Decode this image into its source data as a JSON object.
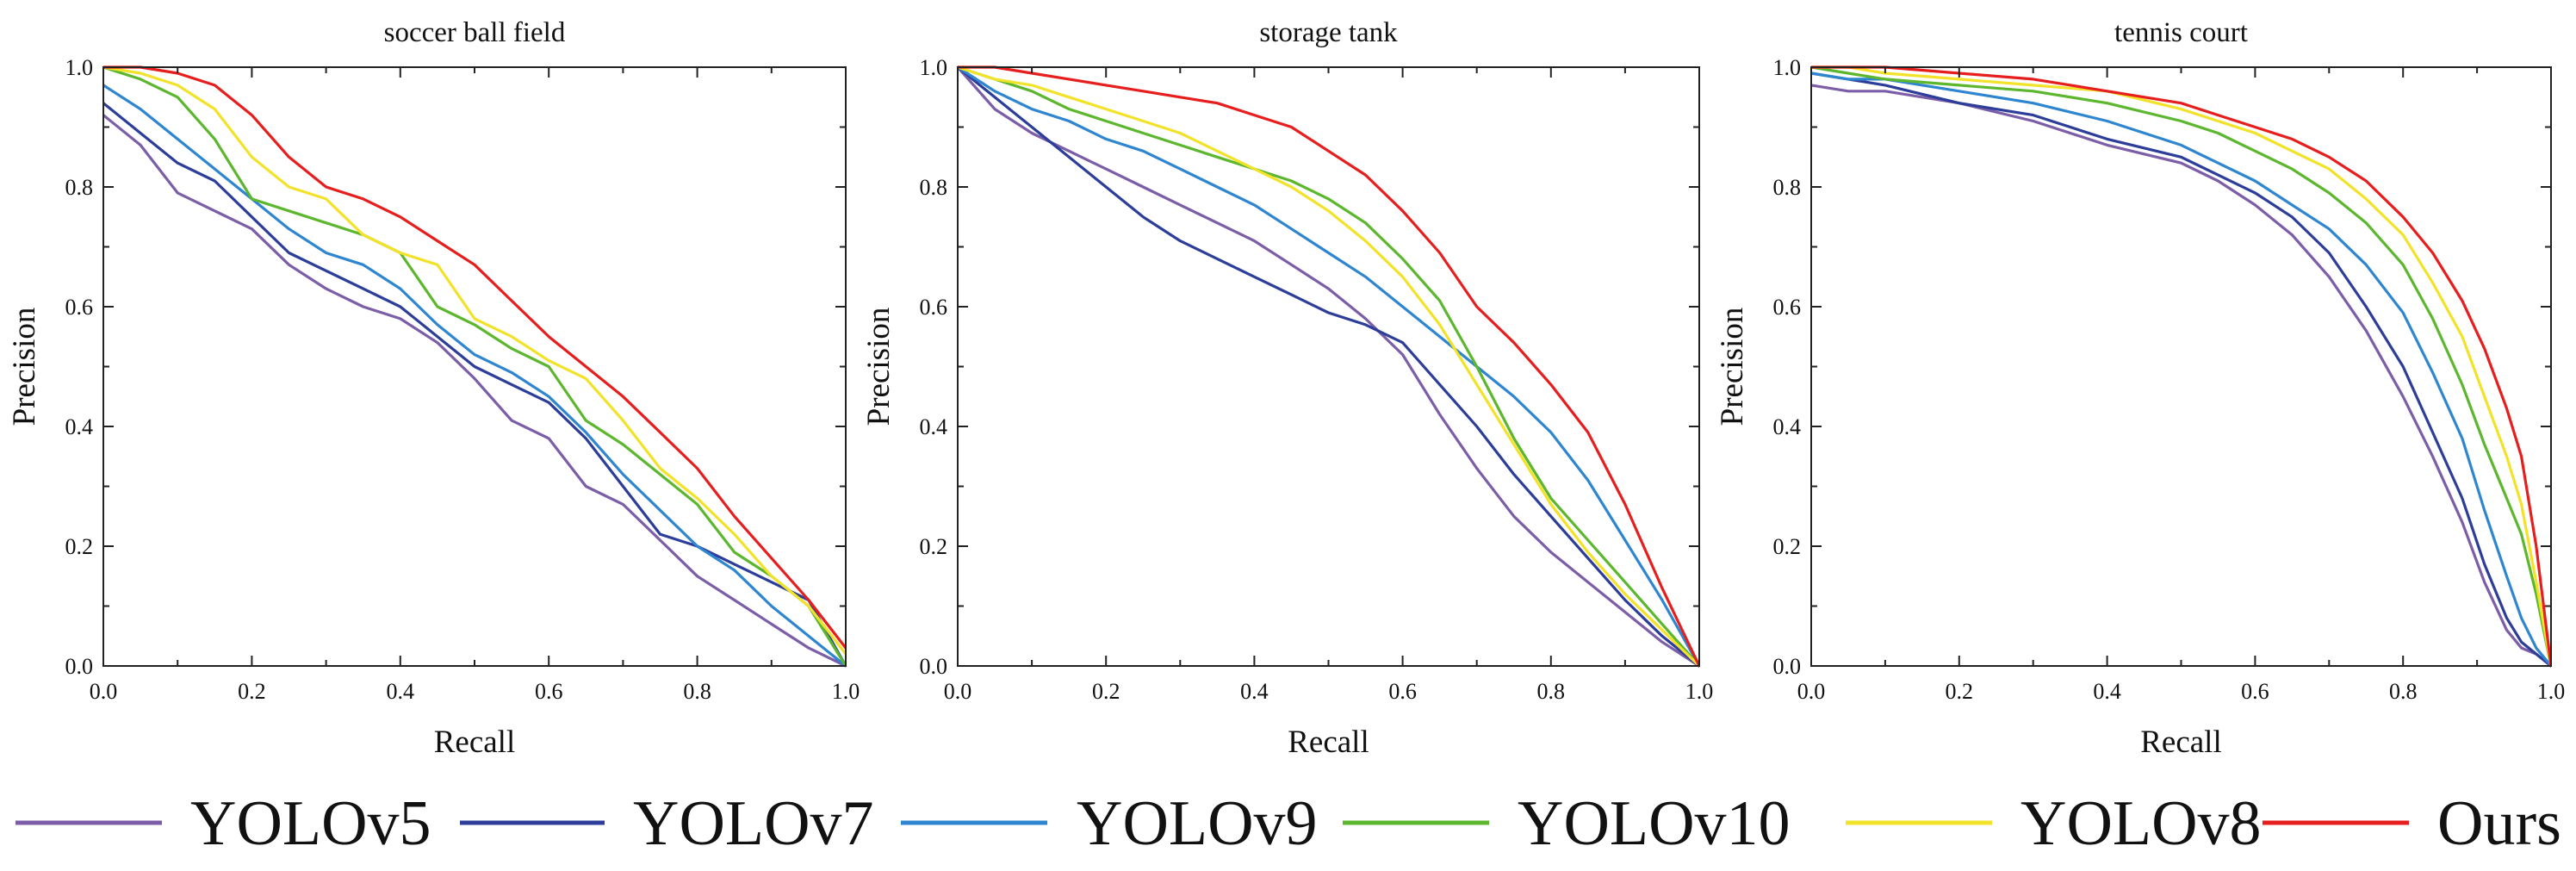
{
  "chart_data": [
    {
      "type": "line",
      "title": "soccer ball field",
      "xlabel": "Recall",
      "ylabel": "Precision",
      "xlim": [
        0,
        1
      ],
      "ylim": [
        0,
        1
      ],
      "grid": false,
      "xticks": [
        "0.0",
        "0.2",
        "0.4",
        "0.6",
        "0.8",
        "1.0"
      ],
      "yticks": [
        "0.0",
        "0.2",
        "0.4",
        "0.6",
        "0.8",
        "1.0"
      ],
      "series": [
        {
          "name": "YOLOv5",
          "x": [
            0,
            0.05,
            0.1,
            0.15,
            0.2,
            0.25,
            0.3,
            0.35,
            0.4,
            0.45,
            0.5,
            0.55,
            0.6,
            0.65,
            0.7,
            0.75,
            0.8,
            0.85,
            0.9,
            0.95,
            1.0
          ],
          "y": [
            0.92,
            0.87,
            0.79,
            0.76,
            0.73,
            0.67,
            0.63,
            0.6,
            0.58,
            0.54,
            0.48,
            0.41,
            0.38,
            0.3,
            0.27,
            0.21,
            0.15,
            0.11,
            0.07,
            0.03,
            0.0
          ]
        },
        {
          "name": "YOLOv7",
          "x": [
            0,
            0.05,
            0.1,
            0.15,
            0.2,
            0.25,
            0.3,
            0.35,
            0.4,
            0.45,
            0.5,
            0.55,
            0.6,
            0.65,
            0.7,
            0.75,
            0.8,
            0.85,
            0.9,
            0.95,
            1.0
          ],
          "y": [
            0.94,
            0.89,
            0.84,
            0.81,
            0.75,
            0.69,
            0.66,
            0.63,
            0.6,
            0.55,
            0.5,
            0.47,
            0.44,
            0.38,
            0.3,
            0.22,
            0.2,
            0.17,
            0.14,
            0.11,
            0.0
          ]
        },
        {
          "name": "YOLOv9",
          "x": [
            0,
            0.05,
            0.1,
            0.15,
            0.2,
            0.25,
            0.3,
            0.35,
            0.4,
            0.45,
            0.5,
            0.55,
            0.6,
            0.65,
            0.7,
            0.75,
            0.8,
            0.85,
            0.9,
            0.95,
            1.0
          ],
          "y": [
            0.97,
            0.93,
            0.88,
            0.83,
            0.78,
            0.73,
            0.69,
            0.67,
            0.63,
            0.57,
            0.52,
            0.49,
            0.45,
            0.39,
            0.32,
            0.26,
            0.2,
            0.16,
            0.1,
            0.05,
            0.0
          ]
        },
        {
          "name": "YOLOv10",
          "x": [
            0,
            0.05,
            0.1,
            0.15,
            0.2,
            0.25,
            0.3,
            0.35,
            0.4,
            0.45,
            0.5,
            0.55,
            0.6,
            0.65,
            0.7,
            0.75,
            0.8,
            0.85,
            0.9,
            0.95,
            1.0
          ],
          "y": [
            1.0,
            0.98,
            0.95,
            0.88,
            0.78,
            0.76,
            0.74,
            0.72,
            0.69,
            0.6,
            0.57,
            0.53,
            0.5,
            0.41,
            0.37,
            0.32,
            0.27,
            0.19,
            0.15,
            0.1,
            0.0
          ]
        },
        {
          "name": "YOLOv8",
          "x": [
            0,
            0.05,
            0.1,
            0.15,
            0.2,
            0.25,
            0.3,
            0.35,
            0.4,
            0.45,
            0.5,
            0.55,
            0.6,
            0.65,
            0.7,
            0.75,
            0.8,
            0.85,
            0.9,
            0.95,
            1.0
          ],
          "y": [
            1.0,
            0.99,
            0.97,
            0.93,
            0.85,
            0.8,
            0.78,
            0.72,
            0.69,
            0.67,
            0.58,
            0.55,
            0.51,
            0.48,
            0.41,
            0.33,
            0.28,
            0.22,
            0.15,
            0.1,
            0.02
          ]
        },
        {
          "name": "Ours",
          "x": [
            0,
            0.05,
            0.1,
            0.15,
            0.2,
            0.25,
            0.3,
            0.35,
            0.4,
            0.45,
            0.5,
            0.55,
            0.6,
            0.65,
            0.7,
            0.75,
            0.8,
            0.85,
            0.9,
            0.95,
            1.0
          ],
          "y": [
            1.0,
            1.0,
            0.99,
            0.97,
            0.92,
            0.85,
            0.8,
            0.78,
            0.75,
            0.71,
            0.67,
            0.61,
            0.55,
            0.5,
            0.45,
            0.39,
            0.33,
            0.25,
            0.18,
            0.11,
            0.03
          ]
        }
      ]
    },
    {
      "type": "line",
      "title": "storage tank",
      "xlabel": "Recall",
      "ylabel": "Precision",
      "xlim": [
        0,
        1
      ],
      "ylim": [
        0,
        1
      ],
      "grid": false,
      "xticks": [
        "0.0",
        "0.2",
        "0.4",
        "0.6",
        "0.8",
        "1.0"
      ],
      "yticks": [
        "0.0",
        "0.2",
        "0.4",
        "0.6",
        "0.8",
        "1.0"
      ],
      "series": [
        {
          "name": "YOLOv5",
          "x": [
            0,
            0.05,
            0.1,
            0.15,
            0.2,
            0.25,
            0.3,
            0.35,
            0.4,
            0.45,
            0.5,
            0.55,
            0.6,
            0.65,
            0.7,
            0.75,
            0.8,
            0.85,
            0.9,
            0.95,
            1.0
          ],
          "y": [
            1.0,
            0.93,
            0.89,
            0.86,
            0.83,
            0.8,
            0.77,
            0.74,
            0.71,
            0.67,
            0.63,
            0.58,
            0.52,
            0.42,
            0.33,
            0.25,
            0.19,
            0.14,
            0.09,
            0.04,
            0.0
          ]
        },
        {
          "name": "YOLOv7",
          "x": [
            0,
            0.05,
            0.1,
            0.15,
            0.2,
            0.25,
            0.3,
            0.35,
            0.4,
            0.45,
            0.5,
            0.55,
            0.6,
            0.65,
            0.7,
            0.75,
            0.8,
            0.85,
            0.9,
            0.95,
            1.0
          ],
          "y": [
            1.0,
            0.95,
            0.9,
            0.85,
            0.8,
            0.75,
            0.71,
            0.68,
            0.65,
            0.62,
            0.59,
            0.57,
            0.54,
            0.47,
            0.4,
            0.32,
            0.25,
            0.18,
            0.11,
            0.05,
            0.0
          ]
        },
        {
          "name": "YOLOv9",
          "x": [
            0,
            0.05,
            0.1,
            0.15,
            0.2,
            0.25,
            0.3,
            0.35,
            0.4,
            0.45,
            0.5,
            0.55,
            0.6,
            0.65,
            0.7,
            0.75,
            0.8,
            0.85,
            0.9,
            0.95,
            1.0
          ],
          "y": [
            1.0,
            0.96,
            0.93,
            0.91,
            0.88,
            0.86,
            0.83,
            0.8,
            0.77,
            0.73,
            0.69,
            0.65,
            0.6,
            0.55,
            0.5,
            0.45,
            0.39,
            0.31,
            0.21,
            0.11,
            0.0
          ]
        },
        {
          "name": "YOLOv10",
          "x": [
            0,
            0.05,
            0.1,
            0.15,
            0.2,
            0.25,
            0.3,
            0.35,
            0.4,
            0.45,
            0.5,
            0.55,
            0.6,
            0.65,
            0.7,
            0.75,
            0.8,
            0.85,
            0.9,
            0.95,
            1.0
          ],
          "y": [
            1.0,
            0.98,
            0.96,
            0.93,
            0.91,
            0.89,
            0.87,
            0.85,
            0.83,
            0.81,
            0.78,
            0.74,
            0.68,
            0.61,
            0.5,
            0.38,
            0.28,
            0.21,
            0.14,
            0.07,
            0.0
          ]
        },
        {
          "name": "YOLOv8",
          "x": [
            0,
            0.05,
            0.1,
            0.15,
            0.2,
            0.25,
            0.3,
            0.35,
            0.4,
            0.45,
            0.5,
            0.55,
            0.6,
            0.65,
            0.7,
            0.75,
            0.8,
            0.85,
            0.9,
            0.95,
            1.0
          ],
          "y": [
            1.0,
            0.98,
            0.97,
            0.95,
            0.93,
            0.91,
            0.89,
            0.86,
            0.83,
            0.8,
            0.76,
            0.71,
            0.65,
            0.57,
            0.47,
            0.37,
            0.27,
            0.19,
            0.12,
            0.06,
            0.0
          ]
        },
        {
          "name": "Ours",
          "x": [
            0,
            0.05,
            0.1,
            0.15,
            0.2,
            0.25,
            0.3,
            0.35,
            0.4,
            0.45,
            0.5,
            0.55,
            0.6,
            0.65,
            0.7,
            0.75,
            0.8,
            0.85,
            0.9,
            0.95,
            1.0
          ],
          "y": [
            1.0,
            1.0,
            0.99,
            0.98,
            0.97,
            0.96,
            0.95,
            0.94,
            0.92,
            0.9,
            0.86,
            0.82,
            0.76,
            0.69,
            0.6,
            0.54,
            0.47,
            0.39,
            0.27,
            0.13,
            0.0
          ]
        }
      ]
    },
    {
      "type": "line",
      "title": "tennis court",
      "xlabel": "Recall",
      "ylabel": "Precision",
      "xlim": [
        0,
        1
      ],
      "ylim": [
        0,
        1
      ],
      "grid": false,
      "xticks": [
        "0.0",
        "0.2",
        "0.4",
        "0.6",
        "0.8",
        "1.0"
      ],
      "yticks": [
        "0.0",
        "0.2",
        "0.4",
        "0.6",
        "0.8",
        "1.0"
      ],
      "series": [
        {
          "name": "YOLOv5",
          "x": [
            0,
            0.05,
            0.1,
            0.2,
            0.3,
            0.4,
            0.5,
            0.55,
            0.6,
            0.65,
            0.7,
            0.75,
            0.8,
            0.84,
            0.88,
            0.91,
            0.94,
            0.96,
            0.98,
            1.0
          ],
          "y": [
            0.97,
            0.96,
            0.96,
            0.94,
            0.91,
            0.87,
            0.84,
            0.81,
            0.77,
            0.72,
            0.65,
            0.56,
            0.45,
            0.35,
            0.24,
            0.14,
            0.06,
            0.03,
            0.02,
            0.0
          ]
        },
        {
          "name": "YOLOv7",
          "x": [
            0,
            0.05,
            0.1,
            0.2,
            0.3,
            0.4,
            0.5,
            0.55,
            0.6,
            0.65,
            0.7,
            0.75,
            0.8,
            0.84,
            0.88,
            0.91,
            0.94,
            0.96,
            0.98,
            1.0
          ],
          "y": [
            0.99,
            0.98,
            0.97,
            0.94,
            0.92,
            0.88,
            0.85,
            0.82,
            0.79,
            0.75,
            0.69,
            0.6,
            0.5,
            0.39,
            0.28,
            0.17,
            0.08,
            0.04,
            0.02,
            0.0
          ]
        },
        {
          "name": "YOLOv9",
          "x": [
            0,
            0.05,
            0.1,
            0.2,
            0.3,
            0.4,
            0.5,
            0.55,
            0.6,
            0.65,
            0.7,
            0.75,
            0.8,
            0.84,
            0.88,
            0.91,
            0.94,
            0.96,
            0.98,
            1.0
          ],
          "y": [
            0.99,
            0.98,
            0.98,
            0.96,
            0.94,
            0.91,
            0.87,
            0.84,
            0.81,
            0.77,
            0.73,
            0.67,
            0.59,
            0.49,
            0.38,
            0.26,
            0.15,
            0.08,
            0.03,
            0.0
          ]
        },
        {
          "name": "YOLOv10",
          "x": [
            0,
            0.05,
            0.1,
            0.2,
            0.3,
            0.4,
            0.5,
            0.55,
            0.6,
            0.65,
            0.7,
            0.75,
            0.8,
            0.84,
            0.88,
            0.91,
            0.94,
            0.96,
            0.98,
            1.0
          ],
          "y": [
            1.0,
            0.99,
            0.98,
            0.97,
            0.96,
            0.94,
            0.91,
            0.89,
            0.86,
            0.83,
            0.79,
            0.74,
            0.67,
            0.58,
            0.47,
            0.37,
            0.28,
            0.22,
            0.12,
            0.0
          ]
        },
        {
          "name": "YOLOv8",
          "x": [
            0,
            0.05,
            0.1,
            0.2,
            0.3,
            0.4,
            0.5,
            0.55,
            0.6,
            0.65,
            0.7,
            0.75,
            0.8,
            0.84,
            0.88,
            0.91,
            0.94,
            0.96,
            0.98,
            1.0
          ],
          "y": [
            1.0,
            1.0,
            0.99,
            0.98,
            0.97,
            0.96,
            0.93,
            0.91,
            0.89,
            0.86,
            0.83,
            0.78,
            0.72,
            0.64,
            0.55,
            0.45,
            0.35,
            0.27,
            0.14,
            0.0
          ]
        },
        {
          "name": "Ours",
          "x": [
            0,
            0.05,
            0.1,
            0.2,
            0.3,
            0.4,
            0.5,
            0.55,
            0.6,
            0.65,
            0.7,
            0.75,
            0.8,
            0.84,
            0.88,
            0.91,
            0.94,
            0.96,
            0.98,
            1.0
          ],
          "y": [
            1.0,
            1.0,
            1.0,
            0.99,
            0.98,
            0.96,
            0.94,
            0.92,
            0.9,
            0.88,
            0.85,
            0.81,
            0.75,
            0.69,
            0.61,
            0.53,
            0.43,
            0.35,
            0.2,
            0.0
          ]
        }
      ]
    }
  ],
  "legend": {
    "position": "bottom",
    "items": [
      {
        "name": "YOLOv5",
        "color": "#7b5ea7"
      },
      {
        "name": "YOLOv7",
        "color": "#2c3d9a"
      },
      {
        "name": "YOLOv9",
        "color": "#2f86d0"
      },
      {
        "name": "YOLOv10",
        "color": "#5cb72e"
      },
      {
        "name": "YOLOv8",
        "color": "#f2e22a"
      },
      {
        "name": "Ours",
        "color": "#e61e1e"
      }
    ]
  },
  "colors": {
    "axis": "#222222",
    "background": "#ffffff"
  }
}
